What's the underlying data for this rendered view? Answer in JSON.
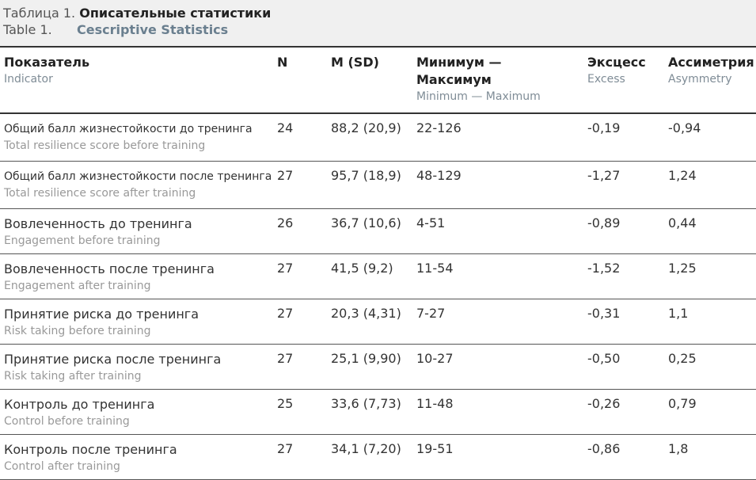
{
  "caption": {
    "ru_label": "Таблица 1.",
    "ru_title": "Описательные статистики",
    "en_label": "Table 1.",
    "en_title": "Cescriptive Statistics"
  },
  "headers": [
    {
      "ru": "Показатель",
      "en": "Indicator"
    },
    {
      "ru": "N",
      "en": ""
    },
    {
      "ru": "M (SD)",
      "en": ""
    },
    {
      "ru": "Минимум —",
      "ru2": "Максимум",
      "en": "Minimum — Maximum"
    },
    {
      "ru": "Эксцесс",
      "en": "Excess"
    },
    {
      "ru": "Ассиметрия",
      "en": "Asymmetry"
    }
  ],
  "rows": [
    {
      "ru": "Общий балл жизнестойкости до тренинга",
      "en": "Total resilience score before training",
      "n": "24",
      "msd": "88,2 (20,9)",
      "range": "22-126",
      "excess": "-0,19",
      "asym": "-0,94"
    },
    {
      "ru": "Общий балл жизнестойкости после тренинга",
      "en": "Total resilience score after training",
      "n": "27",
      "msd": "95,7 (18,9)",
      "range": "48-129",
      "excess": "-1,27",
      "asym": "1,24"
    },
    {
      "ru": "Вовлеченность до тренинга",
      "en": "Engagement before training",
      "n": "26",
      "msd": "36,7 (10,6)",
      "range": "4-51",
      "excess": "-0,89",
      "asym": "0,44"
    },
    {
      "ru": "Вовлеченность после тренинга",
      "en": "Engagement after training",
      "n": "27",
      "msd": "41,5 (9,2)",
      "range": "11-54",
      "excess": "-1,52",
      "asym": "1,25"
    },
    {
      "ru": "Принятие риска до тренинга",
      "en": "Risk taking before training",
      "n": "27",
      "msd": "20,3 (4,31)",
      "range": "7-27",
      "excess": "-0,31",
      "asym": "1,1"
    },
    {
      "ru": "Принятие риска после тренинга",
      "en": "Risk taking after training",
      "n": "27",
      "msd": "25,1 (9,90)",
      "range": "10-27",
      "excess": "-0,50",
      "asym": "0,25"
    },
    {
      "ru": "Контроль до тренинга",
      "en": "Control before training",
      "n": "25",
      "msd": "33,6 (7,73)",
      "range": "11-48",
      "excess": "-0,26",
      "asym": "0,79"
    },
    {
      "ru": "Контроль после тренинга",
      "en": "Control after training",
      "n": "27",
      "msd": "34,1 (7,20)",
      "range": "19-51",
      "excess": "-0,86",
      "asym": "1,8"
    }
  ]
}
